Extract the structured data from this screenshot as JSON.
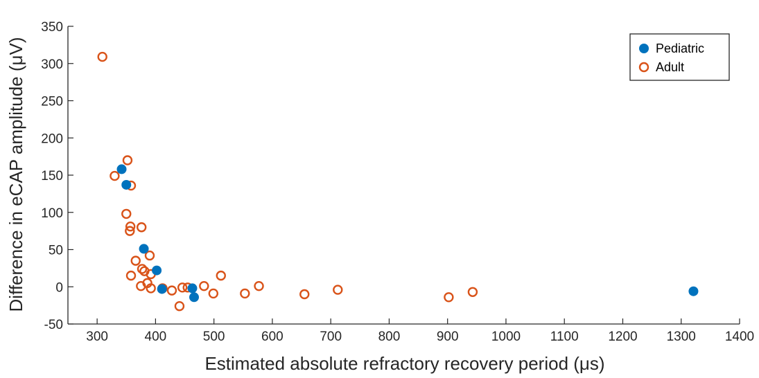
{
  "chart_data": {
    "type": "scatter",
    "xlabel": "Estimated absolute refractory recovery period (μs)",
    "ylabel": "Difference in eCAP amplitude (μV)",
    "xlim": [
      250,
      1400
    ],
    "ylim": [
      -50,
      350
    ],
    "xticks": [
      300,
      400,
      500,
      600,
      700,
      800,
      900,
      1000,
      1100,
      1200,
      1300,
      1400
    ],
    "yticks": [
      -50,
      0,
      50,
      100,
      150,
      200,
      250,
      300,
      350
    ],
    "xtick_labels": [
      "300",
      "400",
      "500",
      "600",
      "700",
      "800",
      "900",
      "1000",
      "1100",
      "1200",
      "1300",
      "1400"
    ],
    "ytick_labels": [
      "-50",
      "0",
      "50",
      "100",
      "150",
      "200",
      "250",
      "300",
      "350"
    ],
    "grid": false,
    "legend_position": "top-right",
    "series": [
      {
        "name": "Pediatric",
        "marker": "filled-circle",
        "color": "#0072BD",
        "points": [
          [
            342,
            158
          ],
          [
            350,
            137
          ],
          [
            380,
            51
          ],
          [
            402,
            22
          ],
          [
            411,
            -3
          ],
          [
            463,
            -2
          ],
          [
            466,
            -14
          ],
          [
            1321,
            -6
          ]
        ]
      },
      {
        "name": "Adult",
        "marker": "open-circle",
        "color": "#D95319",
        "points": [
          [
            309,
            309
          ],
          [
            330,
            149
          ],
          [
            352,
            170
          ],
          [
            358,
            136
          ],
          [
            350,
            98
          ],
          [
            357,
            81
          ],
          [
            356,
            75
          ],
          [
            376,
            80
          ],
          [
            390,
            42
          ],
          [
            366,
            35
          ],
          [
            377,
            24
          ],
          [
            381,
            21
          ],
          [
            392,
            17
          ],
          [
            358,
            15
          ],
          [
            386,
            5
          ],
          [
            375,
            1
          ],
          [
            392,
            -2
          ],
          [
            412,
            -2
          ],
          [
            428,
            -5
          ],
          [
            446,
            -1
          ],
          [
            455,
            -1
          ],
          [
            483,
            1
          ],
          [
            499,
            -9
          ],
          [
            512,
            15
          ],
          [
            553,
            -9
          ],
          [
            577,
            1
          ],
          [
            655,
            -10
          ],
          [
            712,
            -4
          ],
          [
            902,
            -14
          ],
          [
            943,
            -7
          ],
          [
            441,
            -26
          ]
        ]
      }
    ]
  }
}
